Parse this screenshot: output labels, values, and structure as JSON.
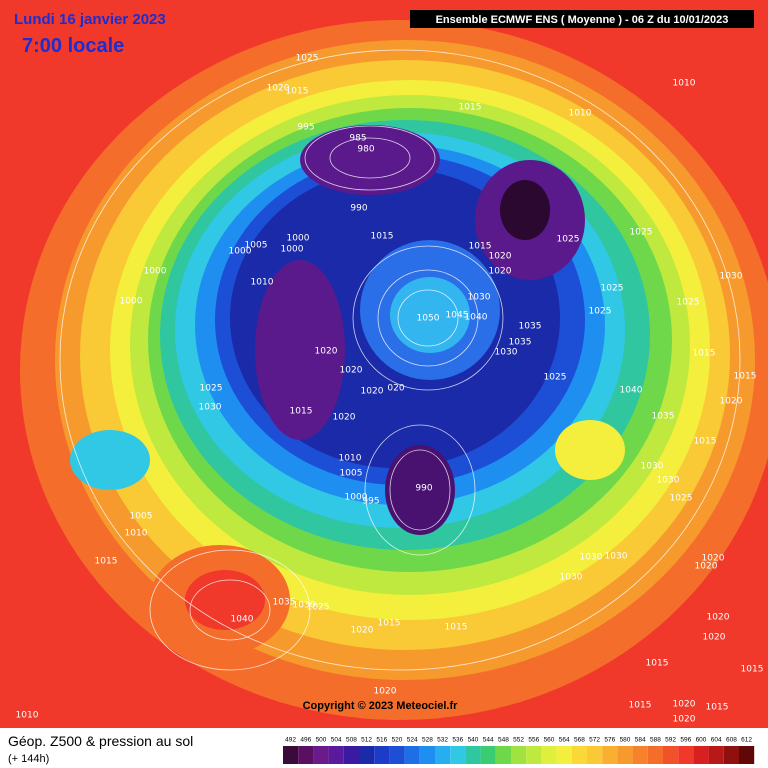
{
  "date_line": "Lundi 16 janvier 2023",
  "time_line": "7:00 locale",
  "header": "Ensemble ECMWF ENS  ( Moyenne )  -  06 Z du 10/01/2023",
  "copyright": "Copyright © 2023 Meteociel.fr",
  "footer_title": "Géop. Z500 & pression au sol",
  "footer_sub": "(+ 144h)",
  "scale_labels": [
    492,
    496,
    500,
    504,
    508,
    512,
    516,
    520,
    524,
    528,
    532,
    536,
    540,
    544,
    548,
    552,
    556,
    560,
    564,
    568,
    572,
    576,
    580,
    584,
    588,
    592,
    596,
    600,
    604,
    608,
    612
  ],
  "isobar_labels": [
    "1025",
    "1020",
    "1015",
    "1010",
    "1015",
    "1010",
    "995",
    "985",
    "980",
    "990",
    "1015",
    "1005",
    "1000",
    "1000",
    "1000",
    "1015",
    "1020",
    "1025",
    "1025",
    "1020",
    "1000",
    "1010",
    "1030",
    "1050",
    "1045",
    "1040",
    "1035",
    "1035",
    "1030",
    "1025",
    "1025",
    "1025",
    "1030",
    "1000",
    "1020",
    "1020",
    "1020",
    "020",
    "1025",
    "1025",
    "1030",
    "1015",
    "1020",
    "1010",
    "1005",
    "1000",
    "995",
    "990",
    "1005",
    "1010",
    "1015",
    "1040",
    "1035",
    "1030",
    "1025",
    "1020",
    "1015",
    "1015",
    "1030",
    "1030",
    "1030",
    "1020",
    "1020",
    "1020",
    "1020",
    "1015",
    "1015",
    "1020",
    "1010",
    "1015",
    "1020",
    "1020",
    "1015",
    "1030",
    "1030",
    "1025",
    "1015",
    "1040",
    "1035",
    "1020",
    "1015",
    "1015"
  ]
}
